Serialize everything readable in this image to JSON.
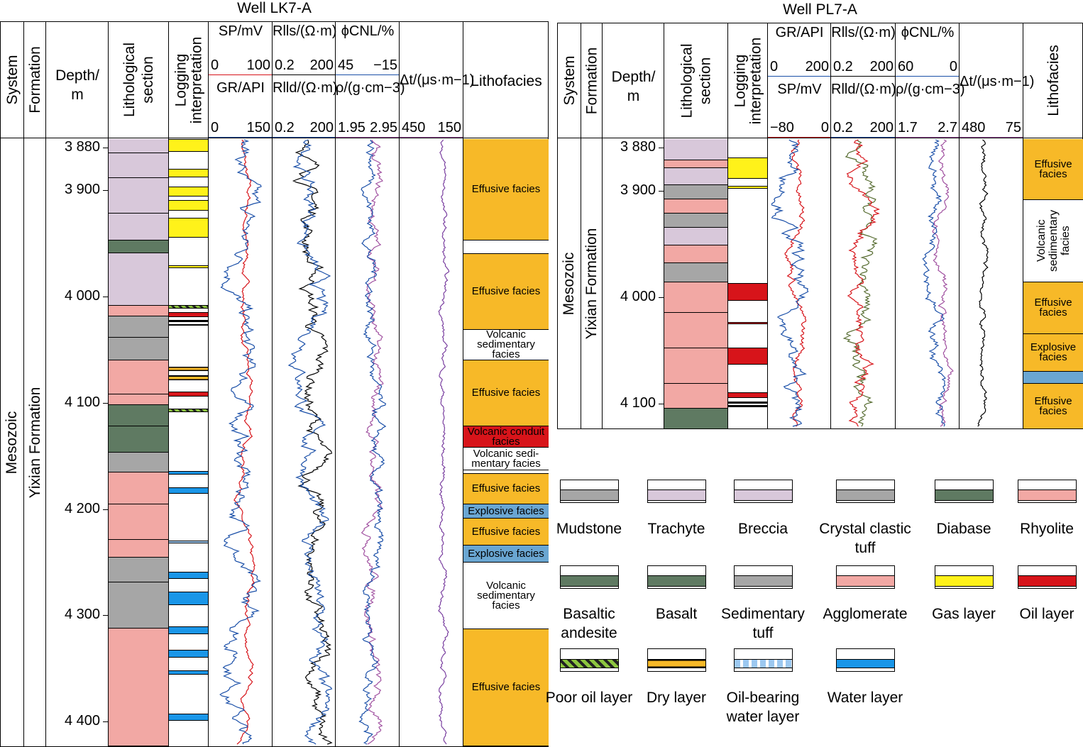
{
  "wells": [
    {
      "name": "Well LK7-A",
      "headers": {
        "system": "System",
        "formation": "Formation",
        "depth": "Depth/\nm",
        "litho": "Lithological\nsection",
        "logging": "Logging\ninterpretation",
        "lithofacies": "Lithofacies",
        "track1_top": "SP/mV",
        "track1_top_scale": [
          "0",
          "100"
        ],
        "track1_bot": "GR/API",
        "track1_bot_scale": [
          "0",
          "150"
        ],
        "track2_top": "Rlls/(Ω·m)",
        "track2_top_scale": [
          "0.2",
          "200"
        ],
        "track2_bot": "Rlld/(Ω·m)",
        "track2_bot_scale": [
          "0.2",
          "200"
        ],
        "track3_top": "ϕCNL/%",
        "track3_top_scale": [
          "45",
          "−15"
        ],
        "track3_bot": "ρ/(g·cm−3)",
        "track3_bot_scale": [
          "1.95",
          "2.95"
        ],
        "track4": "Δt/(μs·m−1)",
        "track4_scale": [
          "450",
          "150"
        ]
      },
      "system": "Mesozoic",
      "formation": "Yixian Formation",
      "depths": [
        "3 880",
        "3 900",
        "4 000",
        "4 100",
        "4 200",
        "4 300",
        "4 400"
      ],
      "facies": [
        "Effusive facies",
        "",
        "Effusive facies",
        "Volcanic sedimentary facies",
        "Effusive facies",
        "Volcanic conduit facies",
        "Volcanic sedi-mentary facies",
        "",
        "Effusive facies",
        "Explosive facies",
        "Effusive facies",
        "Explosive facies",
        "Volcanic sedimentary facies",
        "Effusive facies"
      ]
    },
    {
      "name": "Well PL7-A",
      "headers": {
        "system": "System",
        "formation": "Formation",
        "depth": "Depth/\nm",
        "litho": "Lithological\nsection",
        "logging": "Logging\ninterpretation",
        "lithofacies": "Lithofacies",
        "track1_top": "GR/API",
        "track1_top_scale": [
          "0",
          "200"
        ],
        "track1_bot": "SP/mV",
        "track1_bot_scale": [
          "−80",
          "0"
        ],
        "track2_top": "Rlls/(Ω·m)",
        "track2_top_scale": [
          "0.2",
          "200"
        ],
        "track2_bot": "Rlld/(Ω·m)",
        "track2_bot_scale": [
          "0.2",
          "200"
        ],
        "track3_top": "ϕCNL/%",
        "track3_top_scale": [
          "60",
          "0"
        ],
        "track3_bot": "ρ/(g·cm−3)",
        "track3_bot_scale": [
          "1.7",
          "2.7"
        ],
        "track4": "Δt/(μs·m−1)",
        "track4_scale": [
          "480",
          "75"
        ]
      },
      "system": "Mesozoic",
      "formation": "Yixian Formation",
      "depths": [
        "3 880",
        "3 900",
        "4 000",
        "4 100"
      ],
      "facies": [
        "Effusive facies",
        "Volcanic sedimentary facies",
        "Effusive facies",
        "Explosive facies",
        "",
        "Effusive facies"
      ]
    }
  ],
  "legend": [
    "Mudstone",
    "Trachyte",
    "Breccia",
    "Crystal clastic tuff",
    "Diabase",
    "Rhyolite",
    "Basaltic andesite",
    "Basalt",
    "Sedimentary tuff",
    "Agglomerate",
    "Gas layer",
    "Oil layer",
    "Poor oil layer",
    "Dry layer",
    "Oil-bearing water layer",
    "Water layer"
  ],
  "colors": {
    "effusive": "#f7b928",
    "explosive": "#6aa6d2",
    "conduit": "#d7141a",
    "gas": "#fff21a",
    "oil": "#d7141a",
    "water": "#1a96e8",
    "trachyte": "#d8c8da",
    "rhyolite": "#f2a8a4",
    "diabase": "#5f7a62",
    "mudstone": "#a6a6a6"
  }
}
